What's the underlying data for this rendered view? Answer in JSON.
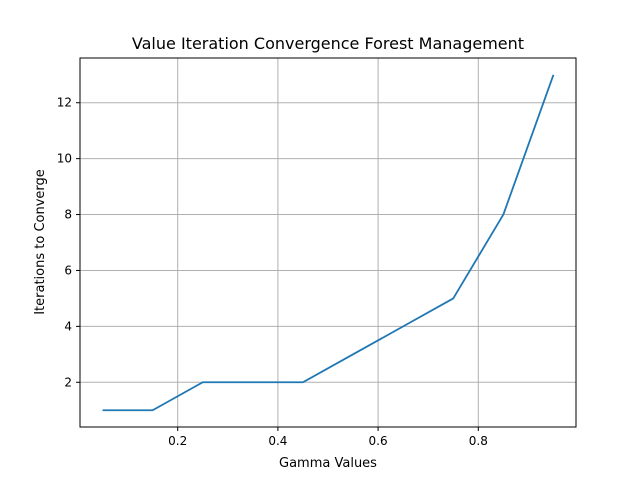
{
  "chart_data": {
    "type": "line",
    "title": "Value Iteration Convergence Forest Management",
    "xlabel": "Gamma Values",
    "ylabel": "Iterations to Converge",
    "xlim": [
      0.005,
      0.995
    ],
    "ylim": [
      0.4,
      13.6
    ],
    "xticks": [
      0.2,
      0.4,
      0.6,
      0.8
    ],
    "yticks": [
      2,
      4,
      6,
      8,
      10,
      12
    ],
    "grid": true,
    "colors": {
      "series": "#1f77b4",
      "grid": "#b0b0b0"
    },
    "series": [
      {
        "x": [
          0.05,
          0.15,
          0.25,
          0.35,
          0.45,
          0.55,
          0.65,
          0.75,
          0.85,
          0.95
        ],
        "values": [
          1,
          1,
          2,
          2,
          2,
          3,
          4,
          5,
          8,
          13
        ]
      }
    ]
  }
}
